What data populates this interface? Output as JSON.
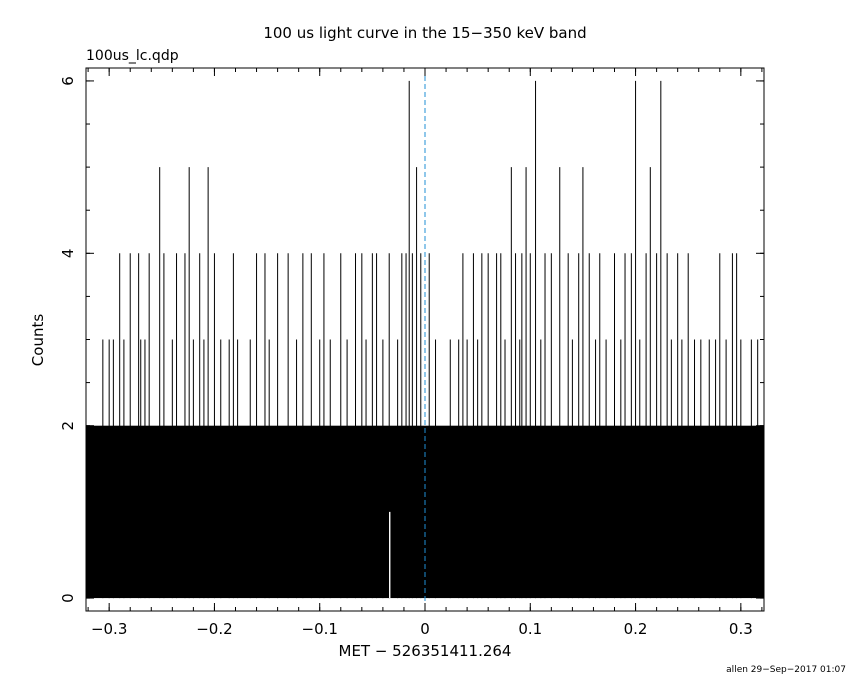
{
  "chart_data": {
    "type": "bar",
    "title": "100 us light curve in the 15−350 keV band",
    "subtitle": "100us_lc.qdp",
    "xlabel": "MET − 526351411.264",
    "ylabel": "Counts",
    "footer": "allen 29−Sep−2017 01:07",
    "xlim": [
      -0.322,
      0.322
    ],
    "ylim": [
      -0.15,
      6.15
    ],
    "xticks": [
      {
        "value": -0.3,
        "label": "−0.3"
      },
      {
        "value": -0.2,
        "label": "−0.2"
      },
      {
        "value": -0.1,
        "label": "−0.1"
      },
      {
        "value": 0,
        "label": "0"
      },
      {
        "value": 0.1,
        "label": "0.1"
      },
      {
        "value": 0.2,
        "label": "0.2"
      },
      {
        "value": 0.3,
        "label": "0.3"
      }
    ],
    "yticks": [
      {
        "value": 0,
        "label": "0"
      },
      {
        "value": 2,
        "label": "2"
      },
      {
        "value": 4,
        "label": "4"
      },
      {
        "value": 6,
        "label": "6"
      }
    ],
    "reference_line": {
      "x": 0,
      "color": "#1f8fd6",
      "style": "dashed"
    },
    "bin_width": 0.0001,
    "series_color": "#000000",
    "peaks": [
      {
        "x": -0.306,
        "y": 3
      },
      {
        "x": -0.3,
        "y": 3
      },
      {
        "x": -0.296,
        "y": 3
      },
      {
        "x": -0.29,
        "y": 4
      },
      {
        "x": -0.286,
        "y": 3
      },
      {
        "x": -0.28,
        "y": 4
      },
      {
        "x": -0.272,
        "y": 4
      },
      {
        "x": -0.27,
        "y": 3
      },
      {
        "x": -0.266,
        "y": 3
      },
      {
        "x": -0.262,
        "y": 4
      },
      {
        "x": -0.252,
        "y": 5
      },
      {
        "x": -0.248,
        "y": 4
      },
      {
        "x": -0.24,
        "y": 3
      },
      {
        "x": -0.236,
        "y": 4
      },
      {
        "x": -0.228,
        "y": 4
      },
      {
        "x": -0.224,
        "y": 5
      },
      {
        "x": -0.22,
        "y": 3
      },
      {
        "x": -0.214,
        "y": 4
      },
      {
        "x": -0.21,
        "y": 3
      },
      {
        "x": -0.206,
        "y": 5
      },
      {
        "x": -0.2,
        "y": 4
      },
      {
        "x": -0.194,
        "y": 3
      },
      {
        "x": -0.186,
        "y": 3
      },
      {
        "x": -0.182,
        "y": 4
      },
      {
        "x": -0.178,
        "y": 3
      },
      {
        "x": -0.166,
        "y": 3
      },
      {
        "x": -0.16,
        "y": 4
      },
      {
        "x": -0.152,
        "y": 4
      },
      {
        "x": -0.148,
        "y": 3
      },
      {
        "x": -0.14,
        "y": 4
      },
      {
        "x": -0.13,
        "y": 4
      },
      {
        "x": -0.122,
        "y": 3
      },
      {
        "x": -0.116,
        "y": 4
      },
      {
        "x": -0.108,
        "y": 4
      },
      {
        "x": -0.1,
        "y": 3
      },
      {
        "x": -0.096,
        "y": 4
      },
      {
        "x": -0.09,
        "y": 3
      },
      {
        "x": -0.08,
        "y": 4
      },
      {
        "x": -0.074,
        "y": 3
      },
      {
        "x": -0.066,
        "y": 4
      },
      {
        "x": -0.06,
        "y": 4
      },
      {
        "x": -0.056,
        "y": 3
      },
      {
        "x": -0.05,
        "y": 4
      },
      {
        "x": -0.046,
        "y": 4
      },
      {
        "x": -0.04,
        "y": 3
      },
      {
        "x": -0.034,
        "y": 4
      },
      {
        "x": -0.026,
        "y": 3
      },
      {
        "x": -0.022,
        "y": 4
      },
      {
        "x": -0.018,
        "y": 4
      },
      {
        "x": -0.015,
        "y": 6
      },
      {
        "x": -0.012,
        "y": 4
      },
      {
        "x": -0.008,
        "y": 5
      },
      {
        "x": -0.004,
        "y": 4
      },
      {
        "x": 0.004,
        "y": 4
      },
      {
        "x": 0.01,
        "y": 3
      },
      {
        "x": 0.024,
        "y": 3
      },
      {
        "x": 0.032,
        "y": 3
      },
      {
        "x": 0.036,
        "y": 4
      },
      {
        "x": 0.04,
        "y": 3
      },
      {
        "x": 0.046,
        "y": 4
      },
      {
        "x": 0.05,
        "y": 3
      },
      {
        "x": 0.054,
        "y": 4
      },
      {
        "x": 0.06,
        "y": 4
      },
      {
        "x": 0.068,
        "y": 4
      },
      {
        "x": 0.072,
        "y": 4
      },
      {
        "x": 0.076,
        "y": 3
      },
      {
        "x": 0.082,
        "y": 5
      },
      {
        "x": 0.086,
        "y": 4
      },
      {
        "x": 0.09,
        "y": 3
      },
      {
        "x": 0.092,
        "y": 4
      },
      {
        "x": 0.096,
        "y": 5
      },
      {
        "x": 0.1,
        "y": 4
      },
      {
        "x": 0.105,
        "y": 6
      },
      {
        "x": 0.11,
        "y": 3
      },
      {
        "x": 0.114,
        "y": 4
      },
      {
        "x": 0.12,
        "y": 4
      },
      {
        "x": 0.128,
        "y": 5
      },
      {
        "x": 0.136,
        "y": 4
      },
      {
        "x": 0.14,
        "y": 3
      },
      {
        "x": 0.146,
        "y": 4
      },
      {
        "x": 0.15,
        "y": 5
      },
      {
        "x": 0.156,
        "y": 4
      },
      {
        "x": 0.162,
        "y": 3
      },
      {
        "x": 0.166,
        "y": 4
      },
      {
        "x": 0.172,
        "y": 3
      },
      {
        "x": 0.18,
        "y": 4
      },
      {
        "x": 0.186,
        "y": 3
      },
      {
        "x": 0.19,
        "y": 4
      },
      {
        "x": 0.196,
        "y": 4
      },
      {
        "x": 0.2,
        "y": 6
      },
      {
        "x": 0.204,
        "y": 3
      },
      {
        "x": 0.21,
        "y": 4
      },
      {
        "x": 0.214,
        "y": 5
      },
      {
        "x": 0.22,
        "y": 4
      },
      {
        "x": 0.224,
        "y": 6
      },
      {
        "x": 0.23,
        "y": 4
      },
      {
        "x": 0.234,
        "y": 3
      },
      {
        "x": 0.24,
        "y": 4
      },
      {
        "x": 0.244,
        "y": 3
      },
      {
        "x": 0.25,
        "y": 4
      },
      {
        "x": 0.256,
        "y": 3
      },
      {
        "x": 0.262,
        "y": 3
      },
      {
        "x": 0.27,
        "y": 3
      },
      {
        "x": 0.276,
        "y": 3
      },
      {
        "x": 0.28,
        "y": 4
      },
      {
        "x": 0.286,
        "y": 3
      },
      {
        "x": 0.292,
        "y": 4
      },
      {
        "x": 0.296,
        "y": 4
      },
      {
        "x": 0.3,
        "y": 3
      },
      {
        "x": 0.31,
        "y": 3
      },
      {
        "x": 0.316,
        "y": 3
      }
    ],
    "gaps": [
      {
        "x": -0.0335,
        "y": 0
      }
    ]
  }
}
